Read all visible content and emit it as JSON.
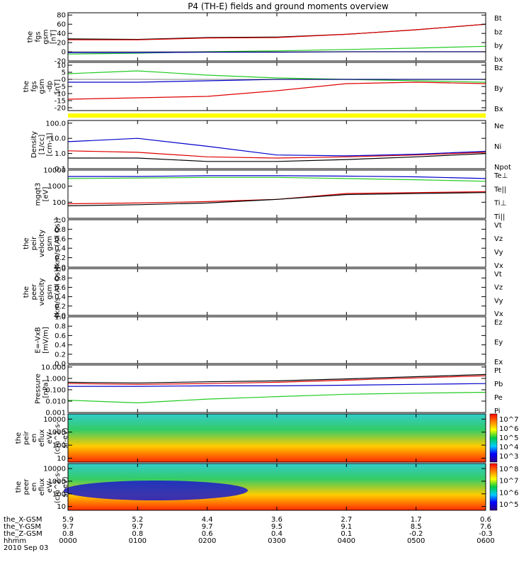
{
  "title": "P4 (TH-E) fields and ground moments overview",
  "colors": {
    "black": "#000000",
    "red": "#e00000",
    "green": "#22cc22",
    "blue": "#0000cc",
    "yellow": "#ffff00"
  },
  "x_ticks": [
    "0000",
    "0100",
    "0200",
    "0300",
    "0400",
    "0500",
    "0600"
  ],
  "ephemeris": {
    "labels": [
      "the_X-GSM",
      "the_Y-GSM",
      "the_Z-GSM",
      "hhmm",
      "2010 Sep 03"
    ],
    "x_gsm": [
      "5.9",
      "5.2",
      "4.4",
      "3.6",
      "2.7",
      "1.7",
      "0.6"
    ],
    "y_gsm": [
      "9.7",
      "9.7",
      "9.7",
      "9.5",
      "9.1",
      "8.5",
      "7.6"
    ],
    "z_gsm": [
      "0.8",
      "0.8",
      "0.6",
      "0.4",
      "0.1",
      "-0.2",
      "-0.3"
    ]
  },
  "chart_data": [
    {
      "id": "fgs_gsm",
      "type": "line",
      "ylabel": [
        "the",
        "fgs",
        "gsm",
        "[nT]"
      ],
      "ylim": [
        -20,
        85
      ],
      "yticks": [
        "-20",
        "0",
        "20",
        "40",
        "60",
        "80"
      ],
      "legend": [
        {
          "name": "Bt",
          "color": "#000000"
        },
        {
          "name": "bz",
          "color": "#e00000"
        },
        {
          "name": "by",
          "color": "#22cc22"
        },
        {
          "name": "bx",
          "color": "#0000cc"
        }
      ],
      "x": [
        0,
        1,
        2,
        3,
        4,
        5,
        6
      ],
      "series": [
        {
          "name": "Bt",
          "values": [
            28,
            27,
            31,
            32,
            38,
            48,
            60
          ]
        },
        {
          "name": "bz",
          "values": [
            26,
            26,
            30,
            31,
            38,
            48,
            60
          ]
        },
        {
          "name": "by",
          "values": [
            -5,
            -3,
            0,
            2,
            5,
            8,
            12
          ]
        },
        {
          "name": "bx",
          "values": [
            -2,
            -2,
            -1,
            -1,
            0,
            0,
            0
          ]
        }
      ]
    },
    {
      "id": "fgs_gsm_dp",
      "type": "line",
      "ylabel": [
        "the",
        "fgs",
        "gsm",
        "-dp",
        "[nT]"
      ],
      "ylim": [
        -22,
        12
      ],
      "yticks": [
        "-20",
        "-15",
        "-10",
        "-5",
        "0",
        "5",
        "10"
      ],
      "legend": [
        {
          "name": "Bz",
          "color": "#e00000"
        },
        {
          "name": "By",
          "color": "#22cc22"
        },
        {
          "name": "Bx",
          "color": "#0000cc"
        }
      ],
      "x": [
        0,
        1,
        2,
        3,
        4,
        5,
        6
      ],
      "series": [
        {
          "name": "Bz",
          "values": [
            -14,
            -13,
            -12,
            -8,
            -3,
            -2,
            -3
          ]
        },
        {
          "name": "By",
          "values": [
            4,
            6,
            3,
            1,
            0,
            -1,
            -2
          ]
        },
        {
          "name": "Bx",
          "values": [
            -2,
            -2,
            -1,
            0,
            0,
            0,
            0
          ]
        }
      ]
    },
    {
      "id": "density",
      "type": "line",
      "ylabel": [
        "Density",
        "[1/cc]",
        "[cm-3]"
      ],
      "ylim": [
        0.1,
        150
      ],
      "scale": "log",
      "yticks": [
        "0.1",
        "1.0",
        "10.0",
        "100.0"
      ],
      "legend": [
        {
          "name": "Ne",
          "color": "#e00000"
        },
        {
          "name": "Ni",
          "color": "#000000"
        },
        {
          "name": "Npot",
          "color": "#0000cc"
        }
      ],
      "x": [
        0,
        1,
        2,
        3,
        4,
        5,
        6
      ],
      "series": [
        {
          "name": "Ne",
          "values": [
            1.5,
            1.2,
            0.6,
            0.5,
            0.6,
            0.8,
            1.2
          ]
        },
        {
          "name": "Ni",
          "values": [
            0.5,
            0.5,
            0.3,
            0.3,
            0.4,
            0.6,
            1.0
          ]
        },
        {
          "name": "Npot",
          "values": [
            6,
            10,
            3,
            0.8,
            0.7,
            0.9,
            1.4
          ]
        }
      ]
    },
    {
      "id": "temperature",
      "type": "line",
      "ylabel": [
        "mgqt3",
        "[eV]"
      ],
      "ylim": [
        10,
        10000
      ],
      "scale": "log",
      "yticks": [
        "100",
        "1000",
        "10000"
      ],
      "legend": [
        {
          "name": "Te⊥",
          "color": "#e00000"
        },
        {
          "name": "Te||",
          "color": "#000000"
        },
        {
          "name": "Ti⊥",
          "color": "#0000cc"
        },
        {
          "name": "Ti||",
          "color": "#22cc22"
        }
      ],
      "x": [
        0,
        1,
        2,
        3,
        4,
        5,
        6
      ],
      "series": [
        {
          "name": "Te⊥",
          "values": [
            80,
            90,
            110,
            150,
            350,
            400,
            450
          ]
        },
        {
          "name": "Te||",
          "values": [
            60,
            70,
            90,
            150,
            300,
            350,
            400
          ]
        },
        {
          "name": "Ti⊥",
          "values": [
            4000,
            4000,
            4500,
            4500,
            4200,
            3800,
            3000
          ]
        },
        {
          "name": "Ti||",
          "values": [
            3000,
            3200,
            3500,
            3500,
            3000,
            2500,
            2000
          ]
        }
      ]
    },
    {
      "id": "peir_velocity",
      "type": "line",
      "ylabel": [
        "the",
        "peir",
        "velocity",
        "gsm",
        "[km/s (All Qs)]"
      ],
      "ylim": [
        0,
        1
      ],
      "yticks": [
        "0.0",
        "0.2",
        "0.4",
        "0.6",
        "0.8",
        "1.0"
      ],
      "legend": [
        {
          "name": "Vt",
          "color": "#000000"
        },
        {
          "name": "Vz",
          "color": "#e00000"
        },
        {
          "name": "Vy",
          "color": "#22cc22"
        },
        {
          "name": "Vx",
          "color": "#0000cc"
        }
      ],
      "series": []
    },
    {
      "id": "peer_velocity",
      "type": "line",
      "ylabel": [
        "the",
        "peer",
        "velocity",
        "gsm",
        "[km/s (All Qs)]"
      ],
      "ylim": [
        0,
        1
      ],
      "yticks": [
        "0.0",
        "0.2",
        "0.4",
        "0.6",
        "0.8",
        "1.0"
      ],
      "legend": [
        {
          "name": "Vt",
          "color": "#000000"
        },
        {
          "name": "Vz",
          "color": "#e00000"
        },
        {
          "name": "Vy",
          "color": "#22cc22"
        },
        {
          "name": "Vx",
          "color": "#0000cc"
        }
      ],
      "series": []
    },
    {
      "id": "efield",
      "type": "line",
      "ylabel": [
        "E=-VxB",
        "[mV/m]"
      ],
      "ylim": [
        0,
        1
      ],
      "yticks": [
        "0.0",
        "0.2",
        "0.4",
        "0.6",
        "0.8",
        "1.0"
      ],
      "legend": [
        {
          "name": "Ez",
          "color": "#e00000"
        },
        {
          "name": "Ey",
          "color": "#22cc22"
        },
        {
          "name": "Ex",
          "color": "#0000cc"
        }
      ],
      "series": []
    },
    {
      "id": "pressure",
      "type": "line",
      "ylabel": [
        "Pressure",
        "[nPa]"
      ],
      "ylim": [
        0.001,
        15
      ],
      "scale": "log",
      "yticks": [
        "0.001",
        "0.010",
        "0.100",
        "1.000",
        "10.000"
      ],
      "legend": [
        {
          "name": "Pt",
          "color": "#000000"
        },
        {
          "name": "Pb",
          "color": "#e00000"
        },
        {
          "name": "Pe",
          "color": "#22cc22"
        },
        {
          "name": "Pi",
          "color": "#0000cc"
        }
      ],
      "x": [
        0,
        1,
        2,
        3,
        4,
        5,
        6
      ],
      "series": [
        {
          "name": "Pt",
          "values": [
            0.45,
            0.4,
            0.5,
            0.6,
            0.9,
            1.4,
            2.2
          ]
        },
        {
          "name": "Pb",
          "values": [
            0.35,
            0.3,
            0.35,
            0.45,
            0.7,
            1.1,
            1.7
          ]
        },
        {
          "name": "Pe",
          "values": [
            0.012,
            0.007,
            0.015,
            0.025,
            0.04,
            0.05,
            0.06
          ]
        },
        {
          "name": "Pi",
          "values": [
            0.2,
            0.2,
            0.22,
            0.22,
            0.25,
            0.3,
            0.35
          ]
        }
      ]
    },
    {
      "id": "peir_spec",
      "type": "heatmap",
      "ylabel": [
        "the",
        "peir",
        "en",
        "eflux",
        "eV/",
        "(cm^2-s-",
        "sr-eV)"
      ],
      "ylim": [
        5,
        25000
      ],
      "scale": "log",
      "yticks": [
        "10",
        "100",
        "1000",
        "10000"
      ],
      "colorbar_ticks": [
        "10^3",
        "10^4",
        "10^5",
        "10^6",
        "10^7"
      ]
    },
    {
      "id": "peer_spec",
      "type": "heatmap",
      "ylabel": [
        "the",
        "peer",
        "en",
        "eflux",
        "eV/",
        "(cm^2-s-",
        "sr-eV)"
      ],
      "ylim": [
        5,
        25000
      ],
      "scale": "log",
      "yticks": [
        "10",
        "100",
        "1000",
        "10000"
      ],
      "colorbar_ticks": [
        "10^5",
        "10^6",
        "10^7",
        "10^8"
      ]
    }
  ]
}
